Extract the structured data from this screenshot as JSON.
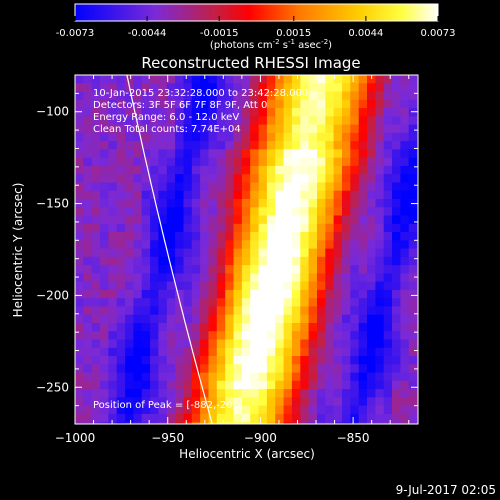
{
  "colorbar": {
    "ticks": [
      "-0.0073",
      "-0.0044",
      "-0.0015",
      "0.0015",
      "0.0044",
      "0.0073"
    ],
    "tick_values": [
      -0.0073,
      -0.0044,
      -0.0015,
      0.0015,
      0.0044,
      0.0073
    ],
    "range": [
      -0.0073,
      0.0073
    ],
    "unit_label": "(photons cm",
    "unit_sup1": "-2",
    "unit_mid": " s",
    "unit_sup2": "-1",
    "unit_mid2": " asec",
    "unit_sup3": "-2",
    "unit_end": ")",
    "colormap": "blue-purple-red-orange-yellow-white"
  },
  "annotations": {
    "time_range": "10-Jan-2015 23:32:28.000 to 23:42:28.000",
    "detectors": "Detectors: 3F 5F 6F 7F 8F 9F, Att 0",
    "energy_range": "Energy Range: 6.0 - 12.0 keV",
    "clean": "Clean    Total counts: 7.74E+04",
    "peak": "Position of Peak = [-882,-201]"
  },
  "footer": {
    "date": "9-Jul-2017 02:05"
  },
  "chart_data": {
    "type": "heatmap",
    "title": "Reconstructed RHESSI Image",
    "xlabel": "Heliocentric X (arcsec)",
    "ylabel": "Heliocentric Y (arcsec)",
    "xlim": [
      -1000,
      -815
    ],
    "ylim": [
      -270,
      -80
    ],
    "xticks": [
      -1000,
      -950,
      -900,
      -850
    ],
    "xtick_labels": [
      "−1000",
      "−950",
      "−900",
      "−850"
    ],
    "yticks": [
      -250,
      -200,
      -150,
      -100
    ],
    "ytick_labels": [
      "−250",
      "−200",
      "−150",
      "−100"
    ],
    "peak_position": [
      -882,
      -201
    ],
    "solar_limb": "white arc crossing from top (~-972, -80) to bottom (~-932, -270)",
    "emission_ridge": {
      "description": "bright diagonal ridge running from upper-right to lower-left",
      "center_top": [
        -868,
        -85
      ],
      "center_bottom": [
        -912,
        -270
      ]
    }
  }
}
